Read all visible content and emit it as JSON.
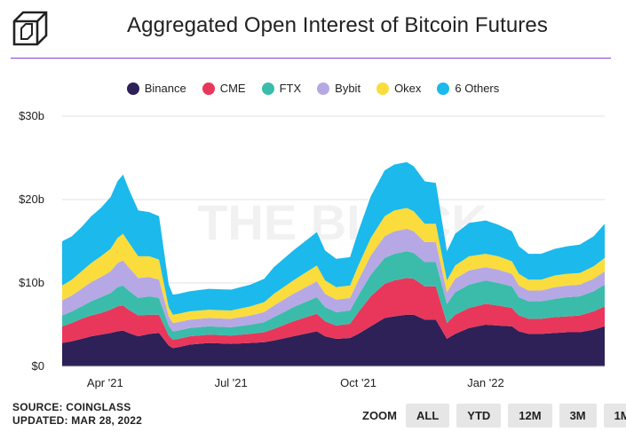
{
  "header": {
    "title": "Aggregated Open Interest of Bitcoin Futures"
  },
  "footer": {
    "source": "SOURCE: COINGLASS",
    "updated": "UPDATED: MAR 28, 2022"
  },
  "zoom": {
    "label": "ZOOM",
    "buttons": [
      "ALL",
      "YTD",
      "12M",
      "3M",
      "1M"
    ]
  },
  "colors": {
    "Binance": "#2d2158",
    "CME": "#e8375b",
    "FTX": "#3bbcab",
    "Bybit": "#b6a8e4",
    "Okex": "#fadc3c",
    "6 Others": "#1bb9ec",
    "title_rule": "#8b3fd9"
  },
  "chart_data": {
    "type": "area",
    "stacked": true,
    "grid": true,
    "legend_position": "top-center",
    "x": [
      "2021-03-01",
      "2021-03-08",
      "2021-03-15",
      "2021-03-22",
      "2021-03-29",
      "2021-04-05",
      "2021-04-10",
      "2021-04-14",
      "2021-04-18",
      "2021-04-25",
      "2021-05-03",
      "2021-05-10",
      "2021-05-17",
      "2021-05-20",
      "2021-05-24",
      "2021-06-01",
      "2021-06-15",
      "2021-07-01",
      "2021-07-15",
      "2021-07-25",
      "2021-08-01",
      "2021-08-15",
      "2021-09-01",
      "2021-09-07",
      "2021-09-15",
      "2021-09-25",
      "2021-10-01",
      "2021-10-10",
      "2021-10-20",
      "2021-10-27",
      "2021-11-05",
      "2021-11-10",
      "2021-11-18",
      "2021-11-26",
      "2021-12-04",
      "2021-12-10",
      "2021-12-20",
      "2022-01-01",
      "2022-01-10",
      "2022-01-20",
      "2022-01-25",
      "2022-02-01",
      "2022-02-10",
      "2022-02-20",
      "2022-03-01",
      "2022-03-10",
      "2022-03-20",
      "2022-03-28"
    ],
    "xticks": [
      "Apr '21",
      "Jul '21",
      "Oct '21",
      "Jan '22"
    ],
    "xtick_dates": [
      "2021-04-01",
      "2021-07-01",
      "2021-10-01",
      "2022-01-01"
    ],
    "ylim": [
      0,
      30
    ],
    "yticks": [
      0,
      10,
      20,
      30
    ],
    "ytick_labels": [
      "$0",
      "$10b",
      "$20b",
      "$30b"
    ],
    "series": [
      {
        "name": "Binance",
        "values": [
          2.8,
          3.0,
          3.3,
          3.6,
          3.8,
          4.0,
          4.2,
          4.3,
          4.0,
          3.6,
          3.9,
          4.0,
          2.5,
          2.2,
          2.3,
          2.6,
          2.8,
          2.7,
          2.8,
          2.9,
          3.1,
          3.6,
          4.2,
          3.6,
          3.3,
          3.4,
          3.9,
          4.8,
          5.8,
          6.0,
          6.2,
          6.2,
          5.6,
          5.6,
          3.3,
          3.9,
          4.6,
          5.0,
          4.9,
          4.8,
          4.2,
          3.9,
          3.9,
          4.0,
          4.1,
          4.1,
          4.4,
          4.8
        ]
      },
      {
        "name": "CME",
        "values": [
          2.0,
          2.2,
          2.4,
          2.5,
          2.6,
          2.8,
          3.0,
          3.0,
          2.8,
          2.5,
          2.3,
          2.2,
          1.2,
          1.0,
          1.0,
          1.0,
          1.0,
          1.0,
          1.1,
          1.2,
          1.4,
          1.8,
          2.1,
          1.8,
          1.6,
          1.7,
          2.6,
          3.6,
          4.1,
          4.3,
          4.4,
          4.3,
          4.0,
          4.0,
          1.9,
          2.3,
          2.4,
          2.5,
          2.4,
          2.2,
          1.9,
          1.8,
          1.8,
          1.9,
          1.9,
          2.0,
          2.2,
          2.4
        ]
      },
      {
        "name": "FTX",
        "values": [
          1.3,
          1.4,
          1.5,
          1.7,
          1.9,
          2.0,
          2.3,
          2.4,
          2.3,
          2.1,
          2.2,
          2.0,
          1.2,
          1.0,
          1.0,
          1.0,
          1.0,
          1.0,
          1.1,
          1.2,
          1.4,
          1.7,
          2.0,
          1.7,
          1.6,
          1.6,
          2.0,
          2.6,
          3.1,
          3.2,
          3.2,
          3.1,
          2.9,
          2.9,
          2.3,
          2.7,
          2.8,
          2.8,
          2.7,
          2.6,
          2.2,
          2.1,
          2.1,
          2.2,
          2.3,
          2.3,
          2.4,
          2.6
        ]
      },
      {
        "name": "Bybit",
        "values": [
          1.8,
          1.9,
          2.1,
          2.3,
          2.4,
          2.6,
          2.9,
          3.0,
          2.8,
          2.4,
          2.3,
          2.2,
          1.1,
          1.0,
          1.0,
          1.0,
          1.0,
          1.0,
          1.1,
          1.2,
          1.4,
          1.6,
          1.9,
          1.6,
          1.5,
          1.5,
          1.8,
          2.3,
          2.6,
          2.7,
          2.7,
          2.6,
          2.4,
          2.4,
          1.4,
          1.6,
          1.7,
          1.6,
          1.6,
          1.5,
          1.4,
          1.3,
          1.3,
          1.4,
          1.4,
          1.4,
          1.5,
          1.6
        ]
      },
      {
        "name": "Okex",
        "values": [
          1.8,
          1.9,
          2.1,
          2.3,
          2.5,
          2.7,
          3.0,
          3.2,
          3.0,
          2.6,
          2.5,
          2.4,
          1.1,
          1.0,
          1.0,
          1.0,
          1.0,
          1.0,
          1.1,
          1.2,
          1.4,
          1.6,
          1.9,
          1.6,
          1.5,
          1.5,
          1.8,
          2.1,
          2.4,
          2.5,
          2.5,
          2.4,
          2.2,
          2.2,
          1.4,
          1.6,
          1.7,
          1.6,
          1.6,
          1.5,
          1.4,
          1.3,
          1.3,
          1.4,
          1.4,
          1.4,
          1.5,
          1.6
        ]
      },
      {
        "name": "6 Others",
        "values": [
          5.3,
          5.2,
          5.3,
          5.6,
          5.8,
          6.2,
          6.8,
          7.1,
          6.4,
          5.5,
          5.3,
          5.2,
          2.7,
          2.4,
          2.4,
          2.4,
          2.5,
          2.5,
          2.6,
          2.8,
          3.2,
          3.6,
          4.0,
          3.6,
          3.4,
          3.4,
          4.1,
          5.0,
          5.5,
          5.5,
          5.5,
          5.4,
          5.1,
          4.9,
          3.5,
          3.8,
          4.0,
          4.0,
          3.8,
          3.6,
          3.3,
          3.1,
          3.1,
          3.2,
          3.3,
          3.4,
          3.6,
          4.1
        ]
      }
    ]
  }
}
